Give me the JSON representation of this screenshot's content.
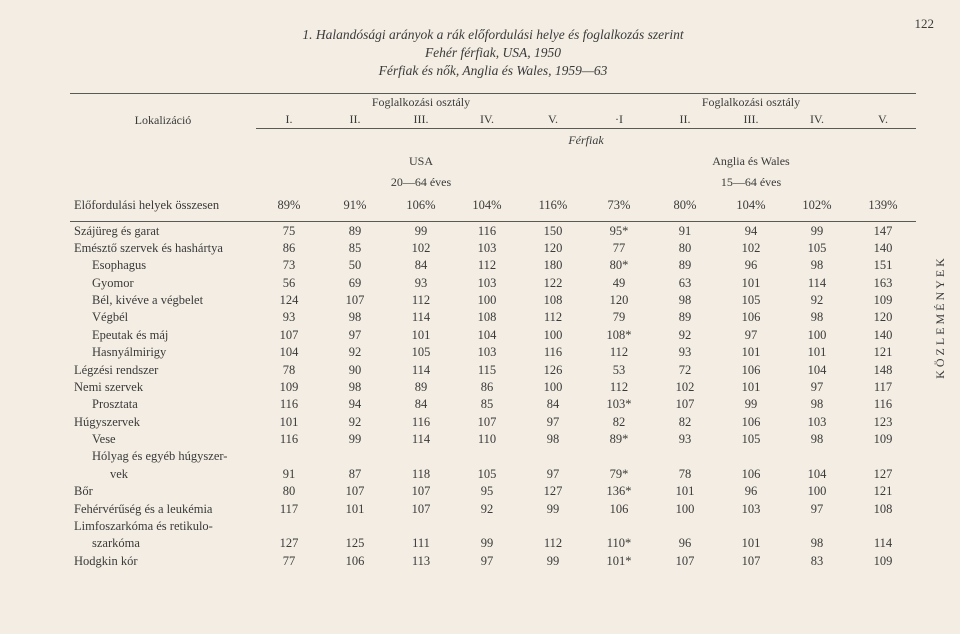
{
  "page_number": "122",
  "side_text": "KÖZLEMÉNYEK",
  "title": {
    "line1": "1. Halandósági arányok a rák előfordulási helye és foglalkozás szerint",
    "line2": "Fehér férfiak, USA, 1950",
    "line3": "Férfiak és nők, Anglia és Wales, 1959—63"
  },
  "headers": {
    "lokal": "Lokalizáció",
    "fog_oszt": "Foglalkozási osztály",
    "roman": [
      "I.",
      "II.",
      "III.",
      "IV.",
      "V.",
      "·I",
      "II.",
      "III.",
      "IV.",
      "V."
    ],
    "ferfiak": "Férfiak",
    "usa": "USA",
    "usa_age": "20—64 éves",
    "anglia": "Anglia és Wales",
    "anglia_age": "15—64 éves"
  },
  "totals": {
    "label": "Előfordulási helyek összesen",
    "vals": [
      "89%",
      "91%",
      "106%",
      "104%",
      "116%",
      "73%",
      "80%",
      "104%",
      "102%",
      "139%"
    ]
  },
  "rows": [
    {
      "label": "Szájüreg és garat",
      "indent": 0,
      "v": [
        "75",
        "89",
        "99",
        "116",
        "150",
        "95*",
        "91",
        "94",
        "99",
        "147"
      ]
    },
    {
      "label": "Emésztő szervek és hashártya",
      "indent": 0,
      "v": [
        "86",
        "85",
        "102",
        "103",
        "120",
        "77",
        "80",
        "102",
        "105",
        "140"
      ]
    },
    {
      "label": "Esophagus",
      "indent": 1,
      "v": [
        "73",
        "50",
        "84",
        "112",
        "180",
        "80*",
        "89",
        "96",
        "98",
        "151"
      ]
    },
    {
      "label": "Gyomor",
      "indent": 1,
      "v": [
        "56",
        "69",
        "93",
        "103",
        "122",
        "49",
        "63",
        "101",
        "114",
        "163"
      ]
    },
    {
      "label": "Bél, kivéve a végbelet",
      "indent": 1,
      "v": [
        "124",
        "107",
        "112",
        "100",
        "108",
        "120",
        "98",
        "105",
        "92",
        "109"
      ]
    },
    {
      "label": "Végbél",
      "indent": 1,
      "v": [
        "93",
        "98",
        "114",
        "108",
        "112",
        "79",
        "89",
        "106",
        "98",
        "120"
      ]
    },
    {
      "label": "Epeutak és máj",
      "indent": 1,
      "v": [
        "107",
        "97",
        "101",
        "104",
        "100",
        "108*",
        "92",
        "97",
        "100",
        "140"
      ]
    },
    {
      "label": "Hasnyálmirigy",
      "indent": 1,
      "v": [
        "104",
        "92",
        "105",
        "103",
        "116",
        "112",
        "93",
        "101",
        "101",
        "121"
      ]
    },
    {
      "label": "Légzési rendszer",
      "indent": 0,
      "v": [
        "78",
        "90",
        "114",
        "115",
        "126",
        "53",
        "72",
        "106",
        "104",
        "148"
      ]
    },
    {
      "label": "Nemi szervek",
      "indent": 0,
      "v": [
        "109",
        "98",
        "89",
        "86",
        "100",
        "112",
        "102",
        "101",
        "97",
        "117"
      ]
    },
    {
      "label": "Prosztata",
      "indent": 1,
      "v": [
        "116",
        "94",
        "84",
        "85",
        "84",
        "103*",
        "107",
        "99",
        "98",
        "116"
      ]
    },
    {
      "label": "Húgyszervek",
      "indent": 0,
      "v": [
        "101",
        "92",
        "116",
        "107",
        "97",
        "82",
        "82",
        "106",
        "103",
        "123"
      ]
    },
    {
      "label": "Vese",
      "indent": 1,
      "v": [
        "116",
        "99",
        "114",
        "110",
        "98",
        "89*",
        "93",
        "105",
        "98",
        "109"
      ]
    },
    {
      "label": "Hólyag és egyéb húgyszer-",
      "indent": 1,
      "v": [
        "",
        "",
        "",
        "",
        "",
        "",
        "",
        "",
        "",
        ""
      ]
    },
    {
      "label": "vek",
      "indent": 2,
      "v": [
        "91",
        "87",
        "118",
        "105",
        "97",
        "79*",
        "78",
        "106",
        "104",
        "127"
      ]
    },
    {
      "label": "Bőr",
      "indent": 0,
      "v": [
        "80",
        "107",
        "107",
        "95",
        "127",
        "136*",
        "101",
        "96",
        "100",
        "121"
      ]
    },
    {
      "label": "Fehérvérűség és a leukémia",
      "indent": 0,
      "v": [
        "117",
        "101",
        "107",
        "92",
        "99",
        "106",
        "100",
        "103",
        "97",
        "108"
      ]
    },
    {
      "label": "Limfoszarkóma és retikulo-",
      "indent": 0,
      "v": [
        "",
        "",
        "",
        "",
        "",
        "",
        "",
        "",
        "",
        ""
      ]
    },
    {
      "label": "szarkóma",
      "indent": 1,
      "v": [
        "127",
        "125",
        "111",
        "99",
        "112",
        "110*",
        "96",
        "101",
        "98",
        "114"
      ]
    },
    {
      "label": "Hodgkin kór",
      "indent": 0,
      "v": [
        "77",
        "106",
        "113",
        "97",
        "99",
        "101*",
        "107",
        "107",
        "83",
        "109"
      ]
    }
  ]
}
